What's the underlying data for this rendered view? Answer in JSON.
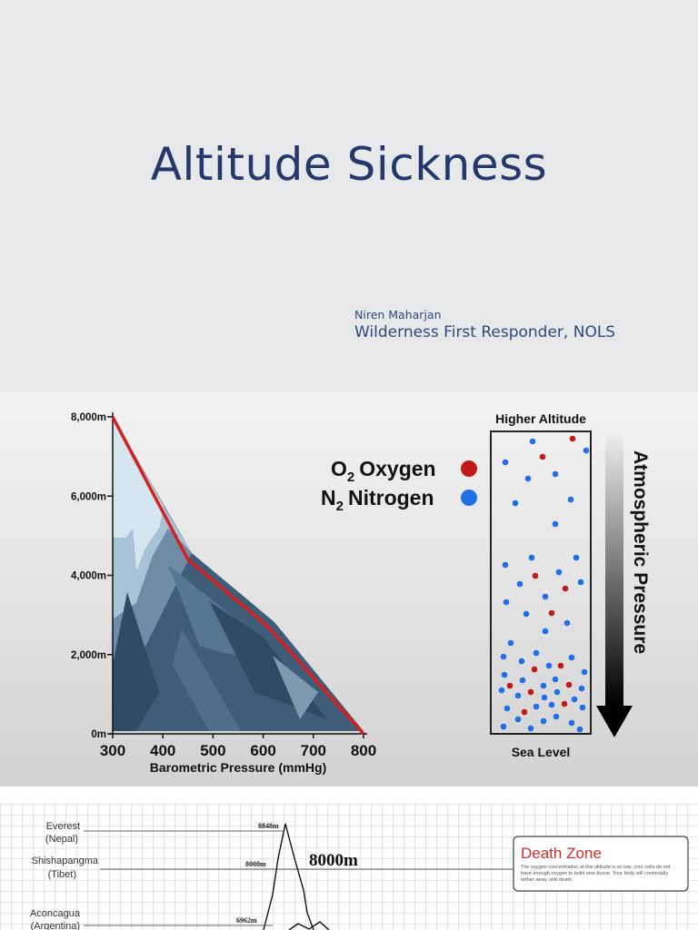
{
  "title_slide": {
    "title": "Altitude Sickness",
    "author": "Niren Maharjan",
    "role": "Wilderness First Responder, NOLS"
  },
  "pressure_slide": {
    "chart_data": {
      "type": "area",
      "x": [
        300,
        450,
        610,
        800
      ],
      "y": [
        8000,
        4400,
        2700,
        0
      ],
      "x_ticks": [
        "300",
        "400",
        "500",
        "600",
        "700",
        "800"
      ],
      "y_ticks": [
        "8,000m",
        "6,000m",
        "4,000m",
        "2,000m",
        "0m"
      ],
      "xlabel": "Barometric Pressure (mmHg)",
      "ylabel": "",
      "xlim": [
        300,
        800
      ],
      "ylim": [
        0,
        8000
      ],
      "line_color": "#d42020",
      "grid": false
    },
    "legend": {
      "oxygen": {
        "sub": "2",
        "label": "Oxygen",
        "prefix": "O",
        "color": "#c01a1a"
      },
      "nitrogen": {
        "sub": "2",
        "label": "Nitrogen",
        "prefix": "N",
        "color": "#1f6fe8"
      }
    },
    "column": {
      "top_label": "Higher Altitude",
      "bottom_label": "Sea Level",
      "arrow_label": "Atmospheric Pressure"
    }
  },
  "deathzone_slide": {
    "peaks": [
      {
        "name": "Everest",
        "region": "(Nepal)",
        "height": "8848m"
      },
      {
        "name": "Shishapangma",
        "region": "(Tibet)",
        "height": "8000m"
      },
      {
        "name": "Aconcagua",
        "region": "(Argentina)",
        "height": "6962m"
      }
    ],
    "zone_altitude": "8000m",
    "zone_title": "Death Zone",
    "zone_text_lines": [
      "The oxygen concentration at this altitude is so low, your cells do not",
      "have enough oxygen to build new tissue. Your body will continually",
      "wither away until death."
    ]
  }
}
